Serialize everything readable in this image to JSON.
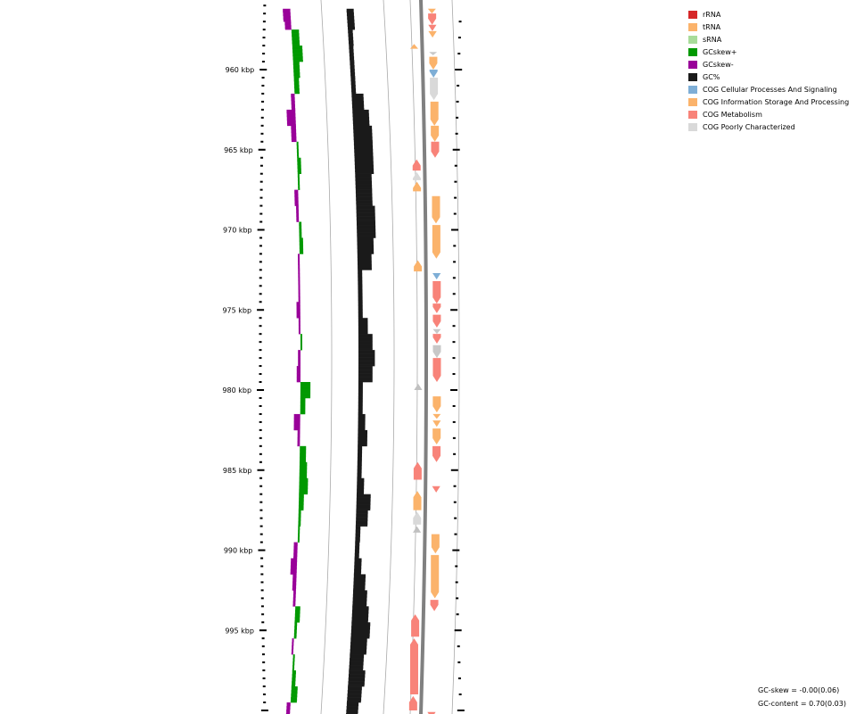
{
  "legend": [
    {
      "label": "rRNA",
      "color": "#d62728"
    },
    {
      "label": "tRNA",
      "color": "#fbb36b"
    },
    {
      "label": "sRNA",
      "color": "#a8dc9a"
    },
    {
      "label": "GCskew+",
      "color": "#009900"
    },
    {
      "label": "GCskew-",
      "color": "#990099"
    },
    {
      "label": "GC%",
      "color": "#1a1a1a"
    },
    {
      "label": "COG Cellular Processes And Signaling",
      "color": "#7eaed6"
    },
    {
      "label": "COG Information Storage And Processing",
      "color": "#fbb36b"
    },
    {
      "label": "COG Metabolism",
      "color": "#f88379"
    },
    {
      "label": "COG Poorly Characterized",
      "color": "#d9d9d9"
    }
  ],
  "stats": {
    "gc_skew": "GC-skew = -0.00(0.06)",
    "gc_content": "GC-content = 0.70(0.03)"
  },
  "chart_data": {
    "type": "genome-track",
    "unit": "kbp",
    "visible_range_kbp": [
      956.2,
      1000.5
    ],
    "major_ticks": [
      {
        "kbp": 960,
        "label": "960 kbp"
      },
      {
        "kbp": 965,
        "label": "965 kbp"
      },
      {
        "kbp": 970,
        "label": "970 kbp"
      },
      {
        "kbp": 975,
        "label": "975 kbp"
      },
      {
        "kbp": 980,
        "label": "980 kbp"
      },
      {
        "kbp": 985,
        "label": "985 kbp"
      },
      {
        "kbp": 990,
        "label": "990 kbp"
      },
      {
        "kbp": 995,
        "label": "995 kbp"
      }
    ],
    "gc_skew": [
      [
        956.2,
        -0.6
      ],
      [
        957.0,
        -0.5
      ],
      [
        957.5,
        0.6
      ],
      [
        958.5,
        0.8
      ],
      [
        959.5,
        0.5
      ],
      [
        960.5,
        0.4
      ],
      [
        961.5,
        -0.3
      ],
      [
        962.5,
        -0.7
      ],
      [
        963.5,
        -0.4
      ],
      [
        964.5,
        0.1
      ],
      [
        965.5,
        0.3
      ],
      [
        966.5,
        0.1
      ],
      [
        967.5,
        -0.3
      ],
      [
        968.5,
        -0.2
      ],
      [
        969.5,
        0.2
      ],
      [
        970.5,
        0.3
      ],
      [
        971.5,
        -0.1
      ],
      [
        972.5,
        -0.1
      ],
      [
        973.5,
        -0.1
      ],
      [
        974.5,
        -0.3
      ],
      [
        975.5,
        -0.1
      ],
      [
        976.5,
        0.1
      ],
      [
        977.5,
        -0.2
      ],
      [
        978.5,
        -0.3
      ],
      [
        979.5,
        0.8
      ],
      [
        980.5,
        0.4
      ],
      [
        981.5,
        -0.5
      ],
      [
        982.5,
        -0.2
      ],
      [
        983.5,
        0.5
      ],
      [
        984.5,
        0.6
      ],
      [
        985.5,
        0.7
      ],
      [
        986.5,
        0.4
      ],
      [
        987.5,
        0.2
      ],
      [
        988.5,
        0.1
      ],
      [
        989.5,
        -0.3
      ],
      [
        990.5,
        -0.5
      ],
      [
        991.5,
        -0.3
      ],
      [
        992.5,
        -0.2
      ],
      [
        993.5,
        0.4
      ],
      [
        994.5,
        0.2
      ],
      [
        995.5,
        -0.1
      ],
      [
        996.5,
        0.1
      ],
      [
        997.5,
        0.3
      ],
      [
        998.5,
        0.5
      ],
      [
        999.5,
        -0.3
      ],
      [
        1000.5,
        -0.6
      ]
    ],
    "gc_content": [
      [
        956.2,
        0.7
      ],
      [
        957.5,
        0.69
      ],
      [
        958.5,
        0.68
      ],
      [
        959.5,
        0.66
      ],
      [
        960.5,
        0.67
      ],
      [
        961.5,
        0.72
      ],
      [
        962.5,
        0.74
      ],
      [
        963.5,
        0.75
      ],
      [
        964.5,
        0.75
      ],
      [
        965.5,
        0.75
      ],
      [
        966.5,
        0.74
      ],
      [
        967.5,
        0.74
      ],
      [
        968.5,
        0.75
      ],
      [
        969.5,
        0.75
      ],
      [
        970.5,
        0.74
      ],
      [
        971.5,
        0.73
      ],
      [
        972.5,
        0.66
      ],
      [
        973.5,
        0.66
      ],
      [
        974.5,
        0.68
      ],
      [
        975.5,
        0.71
      ],
      [
        976.5,
        0.73
      ],
      [
        977.5,
        0.74
      ],
      [
        978.5,
        0.73
      ],
      [
        979.5,
        0.66
      ],
      [
        980.5,
        0.67
      ],
      [
        981.5,
        0.7
      ],
      [
        982.5,
        0.71
      ],
      [
        983.5,
        0.68
      ],
      [
        984.5,
        0.67
      ],
      [
        985.5,
        0.7
      ],
      [
        986.5,
        0.73
      ],
      [
        987.5,
        0.72
      ],
      [
        988.5,
        0.69
      ],
      [
        989.5,
        0.67
      ],
      [
        990.5,
        0.7
      ],
      [
        991.5,
        0.72
      ],
      [
        992.5,
        0.73
      ],
      [
        993.5,
        0.74
      ],
      [
        994.5,
        0.75
      ],
      [
        995.5,
        0.74
      ],
      [
        996.5,
        0.73
      ],
      [
        997.5,
        0.74
      ],
      [
        998.5,
        0.73
      ],
      [
        999.5,
        0.72
      ],
      [
        1000.5,
        0.71
      ]
    ],
    "features": [
      {
        "start": 956.2,
        "end": 956.5,
        "strand": "+",
        "category": "COG Information Storage And Processing",
        "color": "#fbb36b"
      },
      {
        "start": 956.5,
        "end": 957.2,
        "strand": "+",
        "category": "COG Metabolism",
        "color": "#f88379"
      },
      {
        "start": 957.2,
        "end": 957.6,
        "strand": "+",
        "category": "COG Metabolism",
        "color": "#f88379"
      },
      {
        "start": 957.6,
        "end": 958.0,
        "strand": "+",
        "category": "COG Information Storage And Processing",
        "color": "#fbb36b"
      },
      {
        "start": 958.4,
        "end": 958.7,
        "strand": "-",
        "category": "COG Information Storage And Processing",
        "color": "#fbb36b"
      },
      {
        "start": 958.9,
        "end": 959.1,
        "strand": "+",
        "category": "COG Poorly Characterized",
        "color": "#c8c8c8"
      },
      {
        "start": 959.2,
        "end": 960.0,
        "strand": "+",
        "category": "COG Information Storage And Processing",
        "color": "#fbb36b"
      },
      {
        "start": 960.0,
        "end": 960.5,
        "strand": "+",
        "category": "COG Cellular Processes And Signaling",
        "color": "#7eaed6"
      },
      {
        "start": 960.5,
        "end": 961.9,
        "strand": "+",
        "category": "COG Poorly Characterized",
        "color": "#d9d9d9"
      },
      {
        "start": 962.0,
        "end": 963.5,
        "strand": "+",
        "category": "COG Information Storage And Processing",
        "color": "#fbb36b"
      },
      {
        "start": 963.5,
        "end": 964.5,
        "strand": "+",
        "category": "COG Information Storage And Processing",
        "color": "#fbb36b"
      },
      {
        "start": 964.5,
        "end": 965.5,
        "strand": "+",
        "category": "COG Metabolism",
        "color": "#f88379"
      },
      {
        "start": 965.6,
        "end": 966.3,
        "strand": "-",
        "category": "COG Metabolism",
        "color": "#f88379"
      },
      {
        "start": 966.4,
        "end": 966.9,
        "strand": "-",
        "category": "COG Poorly Characterized",
        "color": "#d9d9d9"
      },
      {
        "start": 967.0,
        "end": 967.6,
        "strand": "-",
        "category": "COG Information Storage And Processing",
        "color": "#fbb36b"
      },
      {
        "start": 967.9,
        "end": 969.6,
        "strand": "+",
        "category": "COG Information Storage And Processing",
        "color": "#fbb36b"
      },
      {
        "start": 969.7,
        "end": 971.8,
        "strand": "+",
        "category": "COG Information Storage And Processing",
        "color": "#fbb36b"
      },
      {
        "start": 971.9,
        "end": 972.6,
        "strand": "-",
        "category": "COG Information Storage And Processing",
        "color": "#fbb36b"
      },
      {
        "start": 972.7,
        "end": 973.1,
        "strand": "+",
        "category": "COG Cellular Processes And Signaling",
        "color": "#7eaed6"
      },
      {
        "start": 973.2,
        "end": 974.6,
        "strand": "+",
        "category": "COG Metabolism",
        "color": "#f88379"
      },
      {
        "start": 974.6,
        "end": 975.2,
        "strand": "+",
        "category": "COG Metabolism",
        "color": "#f88379"
      },
      {
        "start": 975.3,
        "end": 976.1,
        "strand": "+",
        "category": "COG Metabolism",
        "color": "#f88379"
      },
      {
        "start": 976.2,
        "end": 976.5,
        "strand": "+",
        "category": "COG Poorly Characterized",
        "color": "#c8c8c8"
      },
      {
        "start": 976.5,
        "end": 977.1,
        "strand": "+",
        "category": "COG Metabolism",
        "color": "#f88379"
      },
      {
        "start": 977.2,
        "end": 978.0,
        "strand": "+",
        "category": "COG Poorly Characterized",
        "color": "#c8c8c8"
      },
      {
        "start": 978.0,
        "end": 979.5,
        "strand": "+",
        "category": "COG Metabolism",
        "color": "#f88379"
      },
      {
        "start": 979.6,
        "end": 980.0,
        "strand": "-",
        "category": "COG Poorly Characterized",
        "color": "#c0c0c0"
      },
      {
        "start": 980.4,
        "end": 981.4,
        "strand": "+",
        "category": "COG Information Storage And Processing",
        "color": "#fbb36b"
      },
      {
        "start": 981.5,
        "end": 981.8,
        "strand": "+",
        "category": "COG Information Storage And Processing",
        "color": "#fbb36b"
      },
      {
        "start": 981.9,
        "end": 982.3,
        "strand": "+",
        "category": "COG Information Storage And Processing",
        "color": "#fbb36b"
      },
      {
        "start": 982.4,
        "end": 983.4,
        "strand": "+",
        "category": "COG Information Storage And Processing",
        "color": "#fbb36b"
      },
      {
        "start": 983.5,
        "end": 984.5,
        "strand": "+",
        "category": "COG Metabolism",
        "color": "#f88379"
      },
      {
        "start": 984.5,
        "end": 985.6,
        "strand": "-",
        "category": "COG Metabolism",
        "color": "#f88379"
      },
      {
        "start": 986.0,
        "end": 986.4,
        "strand": "+",
        "category": "COG Metabolism",
        "color": "#f88379"
      },
      {
        "start": 986.3,
        "end": 987.5,
        "strand": "-",
        "category": "COG Information Storage And Processing",
        "color": "#fbb36b"
      },
      {
        "start": 987.6,
        "end": 988.4,
        "strand": "-",
        "category": "COG Poorly Characterized",
        "color": "#d9d9d9"
      },
      {
        "start": 988.5,
        "end": 988.9,
        "strand": "-",
        "category": "COG Poorly Characterized",
        "color": "#c0c0c0"
      },
      {
        "start": 989.0,
        "end": 990.2,
        "strand": "+",
        "category": "COG Information Storage And Processing",
        "color": "#fbb36b"
      },
      {
        "start": 990.3,
        "end": 993.0,
        "strand": "+",
        "category": "COG Information Storage And Processing",
        "color": "#fbb36b"
      },
      {
        "start": 993.1,
        "end": 993.8,
        "strand": "+",
        "category": "COG Metabolism",
        "color": "#f88379"
      },
      {
        "start": 994.0,
        "end": 995.4,
        "strand": "-",
        "category": "COG Metabolism",
        "color": "#f88379"
      },
      {
        "start": 995.5,
        "end": 999.0,
        "strand": "-",
        "category": "COG Metabolism",
        "color": "#f88379"
      },
      {
        "start": 999.1,
        "end": 1000.0,
        "strand": "-",
        "category": "COG Metabolism",
        "color": "#f88379"
      },
      {
        "start": 1000.1,
        "end": 1000.5,
        "strand": "+",
        "category": "COG Metabolism",
        "color": "#f88379"
      }
    ]
  }
}
